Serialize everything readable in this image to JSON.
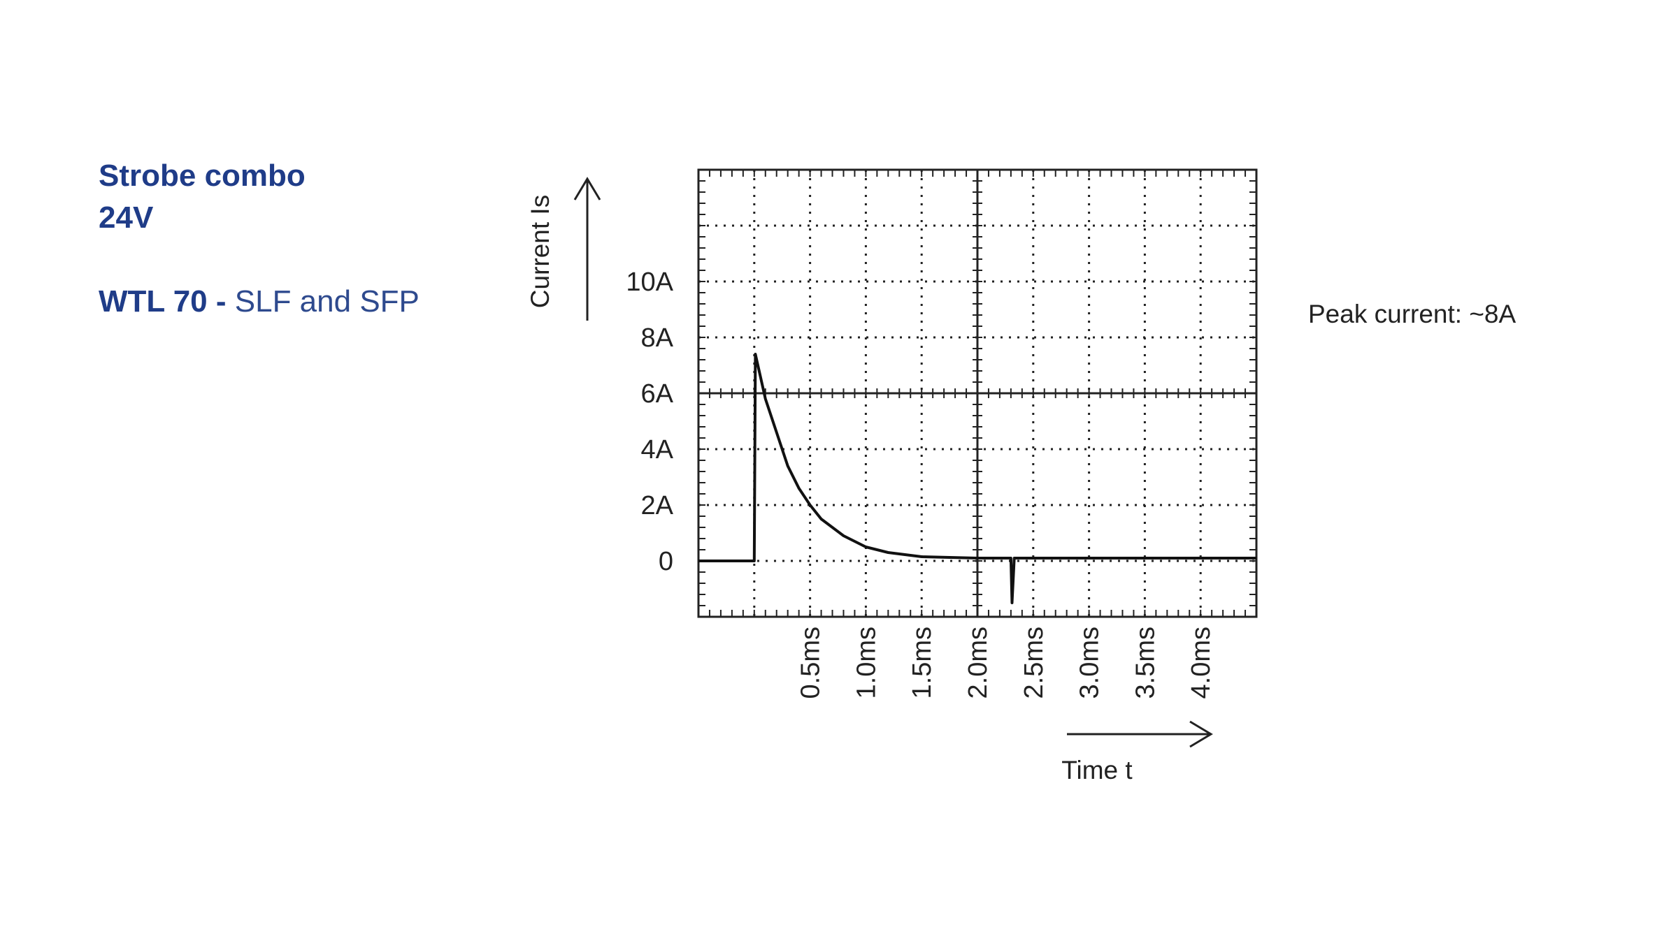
{
  "chart_data": {
    "type": "line",
    "title": "Strobe combo",
    "subtitle": "24V",
    "product": {
      "model": "WTL 70 -",
      "variant": "SLF and SFP"
    },
    "y_label": "Current Is",
    "x_label": "Time t",
    "annotation": "Peak current:  ~8A",
    "x": [
      -0.5,
      0,
      0.01,
      0.1,
      0.2,
      0.3,
      0.4,
      0.5,
      0.6,
      0.8,
      1.0,
      1.2,
      1.5,
      2.0,
      2.3,
      2.31,
      2.33,
      3.0,
      4.5
    ],
    "series": [
      {
        "name": "Current",
        "color": "#111111",
        "values": [
          0,
          0,
          7.4,
          5.8,
          4.6,
          3.4,
          2.6,
          2.0,
          1.5,
          0.9,
          0.5,
          0.3,
          0.15,
          0.1,
          0.1,
          -1.5,
          0.1,
          0.1,
          0.1
        ]
      }
    ],
    "xlim": [
      -0.5,
      4.5
    ],
    "xticks": [
      {
        "value": 0.5,
        "label": "0.5ms"
      },
      {
        "value": 1.0,
        "label": "1.0ms"
      },
      {
        "value": 1.5,
        "label": "1.5ms"
      },
      {
        "value": 2.0,
        "label": "2.0ms"
      },
      {
        "value": 2.5,
        "label": "2.5ms"
      },
      {
        "value": 3.0,
        "label": "3.0ms"
      },
      {
        "value": 3.5,
        "label": "3.5ms"
      },
      {
        "value": 4.0,
        "label": "4.0ms"
      }
    ],
    "ylim": [
      -2,
      14
    ],
    "yticks": [
      0,
      {
        "value": 2,
        "label": "2A"
      },
      {
        "value": 4,
        "label": "4A"
      },
      {
        "value": 6,
        "label": "6A"
      },
      {
        "value": 8,
        "label": "8A"
      },
      {
        "value": 10,
        "label": "10A"
      }
    ],
    "grid": true
  }
}
